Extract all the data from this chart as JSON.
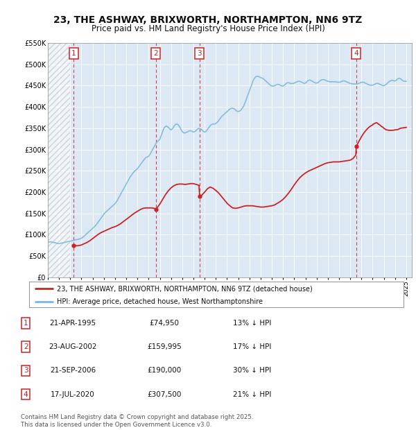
{
  "title": "23, THE ASHWAY, BRIXWORTH, NORTHAMPTON, NN6 9TZ",
  "subtitle": "Price paid vs. HM Land Registry's House Price Index (HPI)",
  "title_fontsize": 10,
  "subtitle_fontsize": 8.5,
  "background_color": "#ffffff",
  "plot_bg_color": "#dce9f5",
  "ylim": [
    0,
    550000
  ],
  "yticks": [
    0,
    50000,
    100000,
    150000,
    200000,
    250000,
    300000,
    350000,
    400000,
    450000,
    500000,
    550000
  ],
  "ytick_labels": [
    "£0",
    "£50K",
    "£100K",
    "£150K",
    "£200K",
    "£250K",
    "£300K",
    "£350K",
    "£400K",
    "£450K",
    "£500K",
    "£550K"
  ],
  "xlim_start": 1993.0,
  "xlim_end": 2025.5,
  "hpi_color": "#7ab8d9",
  "price_color": "#cc2222",
  "hatch_end_year": 1995.0,
  "transactions": [
    {
      "year": 1995.3,
      "price": 74950,
      "label": "1"
    },
    {
      "year": 2002.65,
      "price": 159995,
      "label": "2"
    },
    {
      "year": 2006.55,
      "price": 190000,
      "label": "3"
    },
    {
      "year": 2020.54,
      "price": 307500,
      "label": "4"
    }
  ],
  "legend_entries": [
    "23, THE ASHWAY, BRIXWORTH, NORTHAMPTON, NN6 9TZ (detached house)",
    "HPI: Average price, detached house, West Northamptonshire"
  ],
  "table_rows": [
    {
      "num": "1",
      "date": "21-APR-1995",
      "price": "£74,950",
      "hpi": "13% ↓ HPI"
    },
    {
      "num": "2",
      "date": "23-AUG-2002",
      "price": "£159,995",
      "hpi": "17% ↓ HPI"
    },
    {
      "num": "3",
      "date": "21-SEP-2006",
      "price": "£190,000",
      "hpi": "30% ↓ HPI"
    },
    {
      "num": "4",
      "date": "17-JUL-2020",
      "price": "£307,500",
      "hpi": "21% ↓ HPI"
    }
  ],
  "footer": "Contains HM Land Registry data © Crown copyright and database right 2025.\nThis data is licensed under the Open Government Licence v3.0.",
  "hpi_data_x": [
    1993.0,
    1993.08,
    1993.17,
    1993.25,
    1993.33,
    1993.42,
    1993.5,
    1993.58,
    1993.67,
    1993.75,
    1993.83,
    1993.92,
    1994.0,
    1994.08,
    1994.17,
    1994.25,
    1994.33,
    1994.42,
    1994.5,
    1994.58,
    1994.67,
    1994.75,
    1994.83,
    1994.92,
    1995.0,
    1995.08,
    1995.17,
    1995.25,
    1995.33,
    1995.42,
    1995.5,
    1995.58,
    1995.67,
    1995.75,
    1995.83,
    1995.92,
    1996.0,
    1996.08,
    1996.17,
    1996.25,
    1996.33,
    1996.42,
    1996.5,
    1996.58,
    1996.67,
    1996.75,
    1996.83,
    1996.92,
    1997.0,
    1997.08,
    1997.17,
    1997.25,
    1997.33,
    1997.42,
    1997.5,
    1997.58,
    1997.67,
    1997.75,
    1997.83,
    1997.92,
    1998.0,
    1998.08,
    1998.17,
    1998.25,
    1998.33,
    1998.42,
    1998.5,
    1998.58,
    1998.67,
    1998.75,
    1998.83,
    1998.92,
    1999.0,
    1999.08,
    1999.17,
    1999.25,
    1999.33,
    1999.42,
    1999.5,
    1999.58,
    1999.67,
    1999.75,
    1999.83,
    1999.92,
    2000.0,
    2000.08,
    2000.17,
    2000.25,
    2000.33,
    2000.42,
    2000.5,
    2000.58,
    2000.67,
    2000.75,
    2000.83,
    2000.92,
    2001.0,
    2001.08,
    2001.17,
    2001.25,
    2001.33,
    2001.42,
    2001.5,
    2001.58,
    2001.67,
    2001.75,
    2001.83,
    2001.92,
    2002.0,
    2002.08,
    2002.17,
    2002.25,
    2002.33,
    2002.42,
    2002.5,
    2002.58,
    2002.67,
    2002.75,
    2002.83,
    2002.92,
    2003.0,
    2003.08,
    2003.17,
    2003.25,
    2003.33,
    2003.42,
    2003.5,
    2003.58,
    2003.67,
    2003.75,
    2003.83,
    2003.92,
    2004.0,
    2004.08,
    2004.17,
    2004.25,
    2004.33,
    2004.42,
    2004.5,
    2004.58,
    2004.67,
    2004.75,
    2004.83,
    2004.92,
    2005.0,
    2005.08,
    2005.17,
    2005.25,
    2005.33,
    2005.42,
    2005.5,
    2005.58,
    2005.67,
    2005.75,
    2005.83,
    2005.92,
    2006.0,
    2006.08,
    2006.17,
    2006.25,
    2006.33,
    2006.42,
    2006.5,
    2006.58,
    2006.67,
    2006.75,
    2006.83,
    2006.92,
    2007.0,
    2007.08,
    2007.17,
    2007.25,
    2007.33,
    2007.42,
    2007.5,
    2007.58,
    2007.67,
    2007.75,
    2007.83,
    2007.92,
    2008.0,
    2008.08,
    2008.17,
    2008.25,
    2008.33,
    2008.42,
    2008.5,
    2008.58,
    2008.67,
    2008.75,
    2008.83,
    2008.92,
    2009.0,
    2009.08,
    2009.17,
    2009.25,
    2009.33,
    2009.42,
    2009.5,
    2009.58,
    2009.67,
    2009.75,
    2009.83,
    2009.92,
    2010.0,
    2010.08,
    2010.17,
    2010.25,
    2010.33,
    2010.42,
    2010.5,
    2010.58,
    2010.67,
    2010.75,
    2010.83,
    2010.92,
    2011.0,
    2011.08,
    2011.17,
    2011.25,
    2011.33,
    2011.42,
    2011.5,
    2011.58,
    2011.67,
    2011.75,
    2011.83,
    2011.92,
    2012.0,
    2012.08,
    2012.17,
    2012.25,
    2012.33,
    2012.42,
    2012.5,
    2012.58,
    2012.67,
    2012.75,
    2012.83,
    2012.92,
    2013.0,
    2013.08,
    2013.17,
    2013.25,
    2013.33,
    2013.42,
    2013.5,
    2013.58,
    2013.67,
    2013.75,
    2013.83,
    2013.92,
    2014.0,
    2014.08,
    2014.17,
    2014.25,
    2014.33,
    2014.42,
    2014.5,
    2014.58,
    2014.67,
    2014.75,
    2014.83,
    2014.92,
    2015.0,
    2015.08,
    2015.17,
    2015.25,
    2015.33,
    2015.42,
    2015.5,
    2015.58,
    2015.67,
    2015.75,
    2015.83,
    2015.92,
    2016.0,
    2016.08,
    2016.17,
    2016.25,
    2016.33,
    2016.42,
    2016.5,
    2016.58,
    2016.67,
    2016.75,
    2016.83,
    2016.92,
    2017.0,
    2017.08,
    2017.17,
    2017.25,
    2017.33,
    2017.42,
    2017.5,
    2017.58,
    2017.67,
    2017.75,
    2017.83,
    2017.92,
    2018.0,
    2018.08,
    2018.17,
    2018.25,
    2018.33,
    2018.42,
    2018.5,
    2018.58,
    2018.67,
    2018.75,
    2018.83,
    2018.92,
    2019.0,
    2019.08,
    2019.17,
    2019.25,
    2019.33,
    2019.42,
    2019.5,
    2019.58,
    2019.67,
    2019.75,
    2019.83,
    2019.92,
    2020.0,
    2020.08,
    2020.17,
    2020.25,
    2020.33,
    2020.42,
    2020.5,
    2020.58,
    2020.67,
    2020.75,
    2020.83,
    2020.92,
    2021.0,
    2021.08,
    2021.17,
    2021.25,
    2021.33,
    2021.42,
    2021.5,
    2021.58,
    2021.67,
    2021.75,
    2021.83,
    2021.92,
    2022.0,
    2022.08,
    2022.17,
    2022.25,
    2022.33,
    2022.42,
    2022.5,
    2022.58,
    2022.67,
    2022.75,
    2022.83,
    2022.92,
    2023.0,
    2023.08,
    2023.17,
    2023.25,
    2023.33,
    2023.42,
    2023.5,
    2023.58,
    2023.67,
    2023.75,
    2023.83,
    2023.92,
    2024.0,
    2024.08,
    2024.17,
    2024.25,
    2024.33,
    2024.42,
    2024.5,
    2024.58,
    2024.67,
    2024.75,
    2024.83,
    2024.92,
    2025.0
  ],
  "hpi_data_y": [
    82000,
    82500,
    83000,
    83500,
    83000,
    82500,
    82000,
    81500,
    81000,
    80500,
    80000,
    79500,
    79000,
    79500,
    80000,
    80500,
    81000,
    81500,
    82000,
    82500,
    83000,
    83500,
    84000,
    84500,
    85000,
    85500,
    86000,
    86500,
    87000,
    87500,
    88000,
    88500,
    89000,
    89500,
    90000,
    91000,
    92000,
    93500,
    95000,
    97000,
    99000,
    101000,
    103000,
    105000,
    107000,
    109000,
    111000,
    113000,
    115000,
    117000,
    119000,
    121000,
    124000,
    127000,
    130000,
    133000,
    136000,
    139000,
    142000,
    145000,
    148000,
    151000,
    153000,
    155000,
    157000,
    159000,
    161000,
    163000,
    165000,
    167000,
    169000,
    171000,
    173000,
    176000,
    179000,
    183000,
    187000,
    191000,
    195000,
    199000,
    203000,
    207000,
    211000,
    215000,
    219000,
    223000,
    227000,
    231000,
    235000,
    238000,
    241000,
    244000,
    247000,
    249000,
    251000,
    253000,
    255000,
    258000,
    261000,
    264000,
    267000,
    270000,
    273000,
    276000,
    279000,
    281000,
    282000,
    283000,
    284000,
    287000,
    291000,
    295000,
    299000,
    303000,
    307000,
    311000,
    315000,
    318000,
    320000,
    322000,
    324000,
    330000,
    336000,
    342000,
    348000,
    352000,
    354000,
    355000,
    354000,
    352000,
    350000,
    348000,
    346000,
    348000,
    350000,
    354000,
    357000,
    359000,
    360000,
    359000,
    357000,
    354000,
    350000,
    346000,
    342000,
    340000,
    339000,
    339000,
    340000,
    341000,
    342000,
    343000,
    344000,
    344000,
    343000,
    342000,
    341000,
    342000,
    343000,
    345000,
    347000,
    349000,
    350000,
    349000,
    348000,
    346000,
    344000,
    342000,
    341000,
    342000,
    344000,
    347000,
    350000,
    353000,
    356000,
    358000,
    359000,
    360000,
    360000,
    360000,
    361000,
    363000,
    365000,
    368000,
    371000,
    374000,
    377000,
    379000,
    381000,
    383000,
    385000,
    387000,
    389000,
    391000,
    393000,
    395000,
    396000,
    397000,
    397000,
    396000,
    395000,
    393000,
    391000,
    390000,
    389000,
    390000,
    391000,
    393000,
    396000,
    399000,
    403000,
    408000,
    414000,
    420000,
    426000,
    432000,
    438000,
    444000,
    450000,
    456000,
    462000,
    466000,
    469000,
    471000,
    472000,
    472000,
    471000,
    470000,
    469000,
    468000,
    467000,
    466000,
    464000,
    462000,
    460000,
    458000,
    456000,
    454000,
    452000,
    450000,
    449000,
    449000,
    449000,
    450000,
    451000,
    452000,
    453000,
    453000,
    452000,
    451000,
    450000,
    449000,
    449000,
    450000,
    452000,
    454000,
    456000,
    457000,
    457000,
    456000,
    455000,
    455000,
    455000,
    455000,
    456000,
    457000,
    458000,
    459000,
    460000,
    460000,
    460000,
    459000,
    458000,
    457000,
    456000,
    455000,
    456000,
    458000,
    460000,
    462000,
    463000,
    463000,
    462000,
    461000,
    459000,
    458000,
    457000,
    456000,
    456000,
    457000,
    458000,
    460000,
    462000,
    463000,
    464000,
    464000,
    464000,
    463000,
    462000,
    461000,
    460000,
    460000,
    459000,
    459000,
    459000,
    459000,
    459000,
    459000,
    459000,
    459000,
    458000,
    458000,
    458000,
    458000,
    459000,
    460000,
    461000,
    461000,
    461000,
    460000,
    459000,
    458000,
    457000,
    456000,
    455000,
    455000,
    454000,
    454000,
    454000,
    454000,
    454000,
    454000,
    454000,
    455000,
    456000,
    457000,
    458000,
    458000,
    458000,
    457000,
    456000,
    455000,
    454000,
    453000,
    452000,
    451000,
    451000,
    451000,
    451000,
    452000,
    453000,
    454000,
    455000,
    455000,
    455000,
    454000,
    453000,
    452000,
    451000,
    450000,
    450000,
    451000,
    452000,
    454000,
    456000,
    458000,
    460000,
    461000,
    462000,
    462000,
    462000,
    461000,
    461000,
    462000,
    464000,
    466000,
    467000,
    467000,
    466000,
    464000,
    462000,
    461000,
    460000,
    460000,
    460000
  ],
  "price_line_x": [
    1995.3,
    1995.5,
    1995.75,
    1996.0,
    1996.25,
    1996.5,
    1996.75,
    1997.0,
    1997.25,
    1997.5,
    1997.75,
    1998.0,
    1998.25,
    1998.5,
    1998.75,
    1999.0,
    1999.25,
    1999.5,
    1999.75,
    2000.0,
    2000.25,
    2000.5,
    2000.75,
    2001.0,
    2001.25,
    2001.5,
    2001.75,
    2002.0,
    2002.25,
    2002.5,
    2002.65,
    2002.75,
    2003.0,
    2003.25,
    2003.5,
    2003.75,
    2004.0,
    2004.25,
    2004.5,
    2004.75,
    2005.0,
    2005.25,
    2005.5,
    2005.75,
    2006.0,
    2006.25,
    2006.5,
    2006.55,
    2006.75,
    2007.0,
    2007.25,
    2007.5,
    2007.75,
    2008.0,
    2008.25,
    2008.5,
    2008.75,
    2009.0,
    2009.25,
    2009.5,
    2009.75,
    2010.0,
    2010.25,
    2010.5,
    2010.75,
    2011.0,
    2011.25,
    2011.5,
    2011.75,
    2012.0,
    2012.25,
    2012.5,
    2012.75,
    2013.0,
    2013.25,
    2013.5,
    2013.75,
    2014.0,
    2014.25,
    2014.5,
    2014.75,
    2015.0,
    2015.25,
    2015.5,
    2015.75,
    2016.0,
    2016.25,
    2016.5,
    2016.75,
    2017.0,
    2017.25,
    2017.5,
    2017.75,
    2018.0,
    2018.25,
    2018.5,
    2018.75,
    2019.0,
    2019.25,
    2019.5,
    2019.75,
    2020.0,
    2020.25,
    2020.5,
    2020.54,
    2020.75,
    2021.0,
    2021.25,
    2021.5,
    2021.75,
    2022.0,
    2022.08,
    2022.17,
    2022.25,
    2022.33,
    2022.42,
    2022.5,
    2022.67,
    2022.75,
    2022.92,
    2023.0,
    2023.17,
    2023.25,
    2023.5,
    2023.75,
    2024.0,
    2024.25,
    2024.42,
    2024.5,
    2024.75,
    2025.0
  ],
  "price_line_y": [
    74950,
    74000,
    74500,
    76000,
    79000,
    82000,
    86000,
    91000,
    96000,
    101000,
    105000,
    108000,
    111000,
    114000,
    117000,
    119000,
    122000,
    126000,
    131000,
    136000,
    141000,
    146000,
    151000,
    155000,
    159000,
    162000,
    163000,
    163000,
    163000,
    162000,
    159995,
    163000,
    172000,
    183000,
    194000,
    203000,
    210000,
    215000,
    218000,
    219000,
    219000,
    218000,
    219000,
    220000,
    220000,
    218000,
    216000,
    190000,
    193000,
    200000,
    208000,
    212000,
    209000,
    204000,
    198000,
    190000,
    182000,
    174000,
    168000,
    163000,
    162000,
    163000,
    165000,
    167000,
    168000,
    168000,
    168000,
    167000,
    166000,
    165000,
    165000,
    166000,
    167000,
    168000,
    170000,
    174000,
    178000,
    183000,
    190000,
    198000,
    207000,
    217000,
    226000,
    234000,
    240000,
    245000,
    249000,
    252000,
    255000,
    258000,
    261000,
    264000,
    267000,
    269000,
    270000,
    271000,
    271000,
    271000,
    272000,
    273000,
    274000,
    275000,
    279000,
    287000,
    307500,
    318000,
    330000,
    340000,
    348000,
    354000,
    358000,
    360000,
    361000,
    362000,
    363000,
    362000,
    360000,
    357000,
    355000,
    352000,
    350000,
    347000,
    346000,
    345000,
    345000,
    346000,
    347000,
    349000,
    350000,
    351000,
    352000
  ]
}
